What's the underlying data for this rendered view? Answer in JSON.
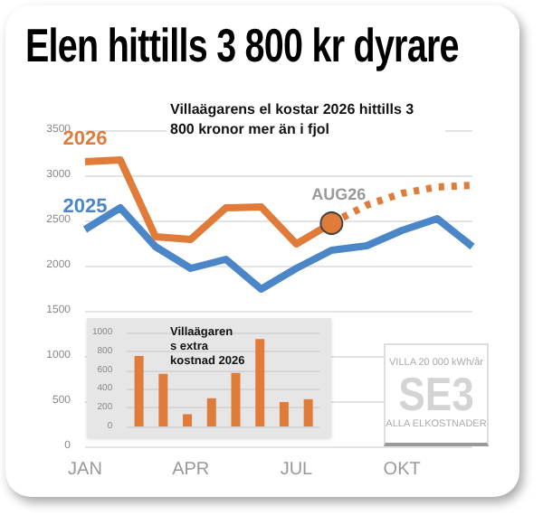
{
  "chart_data": [
    {
      "type": "line",
      "title": "Elen hittills 3 800 kr dyrare",
      "categories": [
        "JAN",
        null,
        null,
        "APR",
        null,
        null,
        "JUL",
        null,
        null,
        "OKT",
        null,
        null
      ],
      "series": [
        {
          "name": "2025",
          "color": "#4a86c8",
          "values": [
            2400,
            2640,
            2210,
            1970,
            2070,
            1740,
            1970,
            2170,
            2220,
            2390,
            2520,
            2210
          ]
        },
        {
          "name": "2026",
          "color": "#e07b39",
          "values": [
            3150,
            3170,
            2320,
            2290,
            2640,
            2650,
            2240,
            2470,
            null,
            null,
            null,
            null
          ]
        },
        {
          "color": "#e07b39",
          "line_style": "dotted",
          "values": [
            null,
            null,
            null,
            null,
            null,
            null,
            null,
            2470,
            2670,
            2800,
            2870,
            2890
          ]
        }
      ],
      "ylim": [
        0,
        3500
      ],
      "yticks": [
        0,
        500,
        1000,
        1500,
        2000,
        2500,
        3000,
        3500
      ],
      "grid": "y",
      "legend": false,
      "annotations": [
        "Villaägarens el kostar 2026 hittills 3 800 kronor mer än i fjol",
        "AUG26"
      ]
    },
    {
      "type": "bar",
      "title": "Villaägarens extra kostnad 2026",
      "categories": [
        null,
        null,
        null,
        null,
        null,
        null,
        null,
        null
      ],
      "values": [
        750,
        560,
        130,
        300,
        570,
        930,
        260,
        290
      ],
      "color": "#e07b39",
      "ylim": [
        0,
        1000
      ],
      "yticks": [
        0,
        200,
        400,
        600,
        800,
        1000
      ],
      "grid": "y"
    },
    {
      "type": "other",
      "annotations": [
        "VILLA 20 000 kWh/år",
        "SE3",
        "ALLA ELKOSTNADER"
      ]
    }
  ]
}
